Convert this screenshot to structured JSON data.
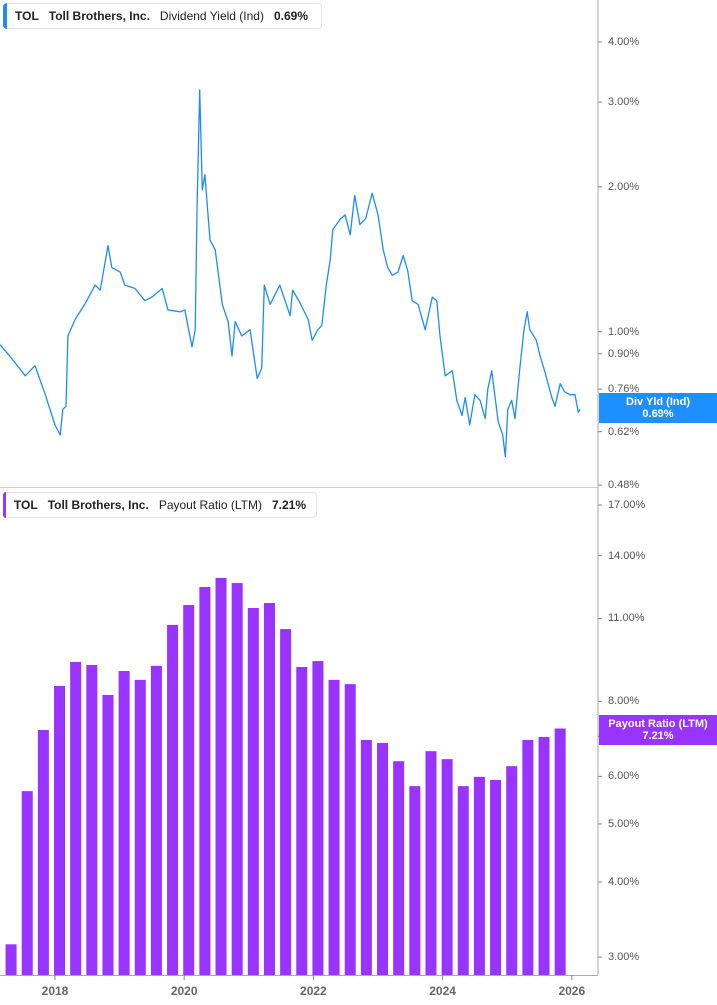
{
  "colors": {
    "yield_line": "#1e8cf7",
    "payout_bar": "#9933ff",
    "axis": "#aaaaaa"
  },
  "top_legend": {
    "ticker": "TOL",
    "company": "Toll Brothers, Inc.",
    "metric": "Dividend Yield (Ind)",
    "value": "0.69%"
  },
  "bottom_legend": {
    "ticker": "TOL",
    "company": "Toll Brothers, Inc.",
    "metric": "Payout Ratio (LTM)",
    "value": "7.21%"
  },
  "top_tag": {
    "label": "Div Yld (Ind)",
    "value": "0.69%"
  },
  "bottom_tag": {
    "label": "Payout Ratio (LTM)",
    "value": "7.21%"
  },
  "chart_data": [
    {
      "type": "line",
      "title": "",
      "series_label": "Dividend Yield (Ind)",
      "y_scale": "log",
      "y_unit": "%",
      "y_ticks": [
        "4.00%",
        "3.00%",
        "2.00%",
        "1.00%",
        "0.90%",
        "0.76%",
        "0.62%",
        "0.48%"
      ],
      "y_tick_values": [
        4,
        3,
        2,
        1,
        0.9,
        0.76,
        0.62,
        0.48
      ],
      "x_range": [
        2017.15,
        2026.3
      ],
      "grid": false,
      "x": [
        2017.15,
        2017.3,
        2017.54,
        2017.69,
        2017.85,
        2018.0,
        2018.08,
        2018.12,
        2018.17,
        2018.2,
        2018.31,
        2018.46,
        2018.62,
        2018.7,
        2018.82,
        2018.88,
        2019.01,
        2019.08,
        2019.24,
        2019.39,
        2019.5,
        2019.66,
        2019.75,
        2019.94,
        2020.01,
        2020.12,
        2020.17,
        2020.2,
        2020.24,
        2020.28,
        2020.32,
        2020.4,
        2020.48,
        2020.59,
        2020.68,
        2020.74,
        2020.79,
        2020.89,
        2021.02,
        2021.13,
        2021.2,
        2021.24,
        2021.33,
        2021.48,
        2021.64,
        2021.68,
        2021.79,
        2021.92,
        2021.98,
        2022.07,
        2022.13,
        2022.2,
        2022.26,
        2022.3,
        2022.41,
        2022.49,
        2022.57,
        2022.64,
        2022.72,
        2022.81,
        2022.91,
        2023.0,
        2023.08,
        2023.15,
        2023.22,
        2023.31,
        2023.39,
        2023.46,
        2023.53,
        2023.62,
        2023.73,
        2023.84,
        2023.91,
        2023.96,
        2024.04,
        2024.15,
        2024.22,
        2024.3,
        2024.35,
        2024.42,
        2024.5,
        2024.58,
        2024.66,
        2024.7,
        2024.76,
        2024.86,
        2024.93,
        2024.97,
        2025.01,
        2025.07,
        2025.12,
        2025.2,
        2025.26,
        2025.31,
        2025.35,
        2025.45,
        2025.51,
        2025.59,
        2025.69,
        2025.74,
        2025.82,
        2025.89,
        2025.97,
        2026.05,
        2026.1,
        2026.13
      ],
      "y": [
        0.94,
        0.89,
        0.81,
        0.85,
        0.74,
        0.64,
        0.61,
        0.69,
        0.7,
        0.98,
        1.06,
        1.14,
        1.25,
        1.22,
        1.51,
        1.36,
        1.33,
        1.25,
        1.23,
        1.16,
        1.18,
        1.23,
        1.11,
        1.1,
        1.11,
        0.93,
        1.01,
        1.83,
        3.18,
        1.97,
        2.12,
        1.55,
        1.48,
        1.14,
        1.05,
        0.89,
        1.05,
        0.98,
        1.01,
        0.8,
        0.84,
        1.25,
        1.14,
        1.25,
        1.08,
        1.22,
        1.15,
        1.06,
        0.96,
        1.01,
        1.03,
        1.25,
        1.41,
        1.63,
        1.71,
        1.75,
        1.59,
        1.92,
        1.67,
        1.72,
        1.94,
        1.75,
        1.48,
        1.36,
        1.31,
        1.33,
        1.44,
        1.34,
        1.16,
        1.14,
        1.01,
        1.18,
        1.16,
        0.98,
        0.81,
        0.83,
        0.72,
        0.67,
        0.73,
        0.64,
        0.74,
        0.72,
        0.66,
        0.76,
        0.83,
        0.65,
        0.61,
        0.55,
        0.69,
        0.72,
        0.66,
        0.85,
        1.01,
        1.1,
        1.01,
        0.96,
        0.89,
        0.82,
        0.73,
        0.7,
        0.78,
        0.75,
        0.74,
        0.74,
        0.68,
        0.69
      ]
    },
    {
      "type": "bar",
      "title": "",
      "series_label": "Payout Ratio (LTM)",
      "y_scale": "log",
      "y_unit": "%",
      "y_ticks": [
        "17.00%",
        "14.00%",
        "11.00%",
        "8.00%",
        "7.00%",
        "6.00%",
        "5.00%",
        "4.00%",
        "3.00%"
      ],
      "y_tick_values": [
        17,
        14,
        11,
        8,
        7,
        6,
        5,
        4,
        3
      ],
      "x_ticks": [
        "2018",
        "2020",
        "2022",
        "2024",
        "2026"
      ],
      "x_tick_values": [
        2018,
        2020,
        2022,
        2024,
        2026
      ],
      "grid": false,
      "x": [
        2017.32,
        2017.57,
        2017.82,
        2018.07,
        2018.32,
        2018.57,
        2018.82,
        2019.07,
        2019.32,
        2019.57,
        2019.82,
        2020.07,
        2020.32,
        2020.57,
        2020.82,
        2021.07,
        2021.32,
        2021.57,
        2021.82,
        2022.07,
        2022.32,
        2022.57,
        2022.82,
        2023.07,
        2023.32,
        2023.57,
        2023.82,
        2024.07,
        2024.32,
        2024.57,
        2024.82,
        2025.07,
        2025.32,
        2025.57,
        2025.82
      ],
      "values": [
        3.15,
        5.67,
        7.17,
        8.49,
        9.31,
        9.2,
        8.2,
        8.99,
        8.69,
        9.17,
        10.73,
        11.58,
        12.41,
        12.85,
        12.6,
        11.45,
        11.67,
        10.56,
        9.13,
        9.34,
        8.69,
        8.55,
        6.9,
        6.82,
        6.36,
        5.78,
        6.61,
        6.41,
        5.78,
        5.99,
        5.92,
        6.24,
        6.9,
        6.98,
        7.21
      ]
    }
  ]
}
